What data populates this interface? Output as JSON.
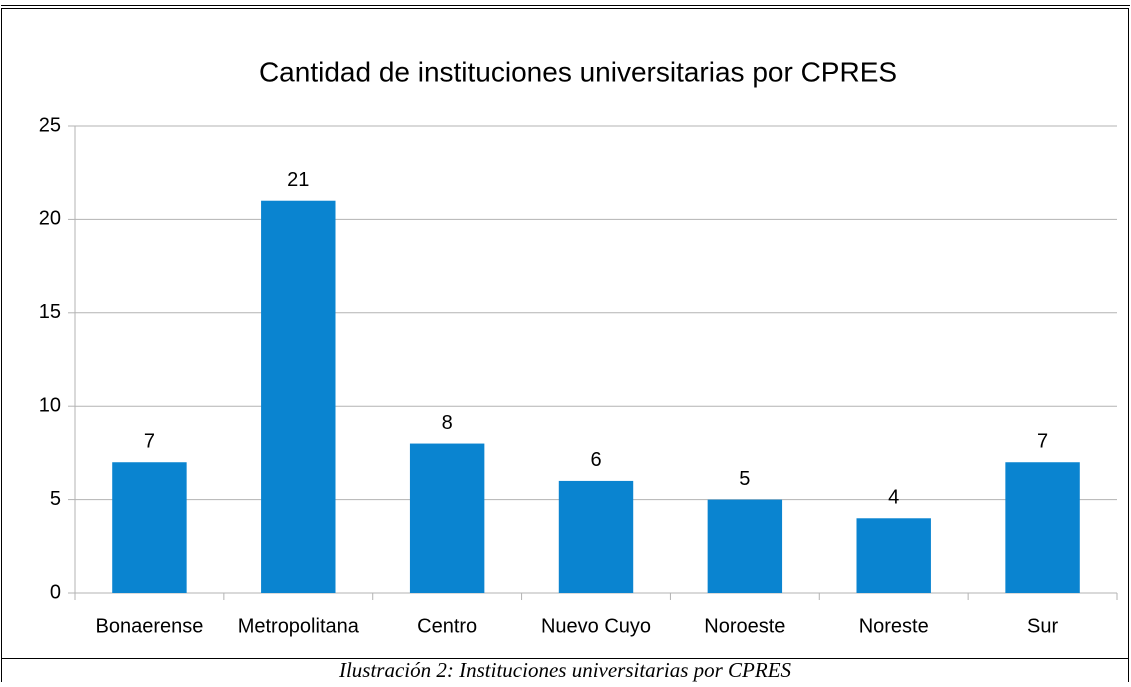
{
  "chart_data": {
    "type": "bar",
    "title": "Cantidad de instituciones universitarias por CPRES",
    "categories": [
      "Bonaerense",
      "Metropolitana",
      "Centro",
      "Nuevo Cuyo",
      "Noroeste",
      "Noreste",
      "Sur"
    ],
    "values": [
      7,
      21,
      8,
      6,
      5,
      4,
      7
    ],
    "color": "#0a84d0",
    "ylim": [
      0,
      25
    ],
    "yticks": [
      0,
      5,
      10,
      15,
      20,
      25
    ],
    "grid": true
  },
  "caption": "Ilustración 2: Instituciones universitarias por CPRES"
}
